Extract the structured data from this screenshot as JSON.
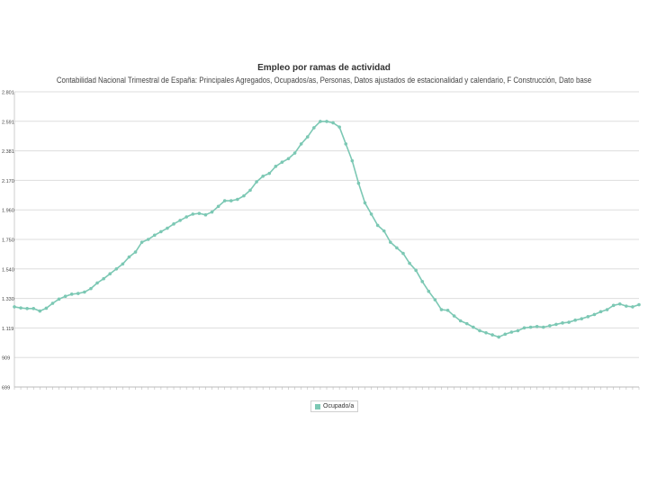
{
  "chart_data": {
    "type": "line",
    "title": "Empleo por ramas de actividad",
    "subtitle": "Contabilidad Nacional Trimestral de España: Principales Agregados, Ocupados/as, Personas, Datos ajustados de estacionalidad y calendario, F Construcción, Dato base",
    "y_ticks": [
      "699",
      "909",
      "1.119",
      "1.330",
      "1.540",
      "1.750",
      "1.960",
      "2.170",
      "2.381",
      "2.591",
      "2.801"
    ],
    "ylim": [
      699,
      2801
    ],
    "grid": true,
    "legend_position": "bottom-center",
    "series": [
      {
        "name": "Ocupado/a",
        "color": "#7cc8b4",
        "values": [
          1270,
          1262,
          1258,
          1258,
          1240,
          1260,
          1295,
          1325,
          1345,
          1360,
          1365,
          1375,
          1400,
          1440,
          1470,
          1505,
          1540,
          1575,
          1625,
          1660,
          1730,
          1750,
          1780,
          1805,
          1830,
          1860,
          1885,
          1910,
          1930,
          1935,
          1925,
          1945,
          1985,
          2025,
          2025,
          2035,
          2060,
          2100,
          2160,
          2200,
          2220,
          2270,
          2300,
          2325,
          2365,
          2430,
          2480,
          2545,
          2590,
          2590,
          2580,
          2550,
          2430,
          2310,
          2150,
          2010,
          1930,
          1850,
          1810,
          1730,
          1690,
          1650,
          1580,
          1530,
          1450,
          1380,
          1320,
          1250,
          1245,
          1205,
          1170,
          1150,
          1125,
          1100,
          1085,
          1070,
          1055,
          1075,
          1090,
          1100,
          1120,
          1125,
          1130,
          1125,
          1135,
          1145,
          1155,
          1160,
          1175,
          1185,
          1200,
          1215,
          1235,
          1250,
          1280,
          1290,
          1275,
          1270,
          1285
        ]
      }
    ]
  }
}
